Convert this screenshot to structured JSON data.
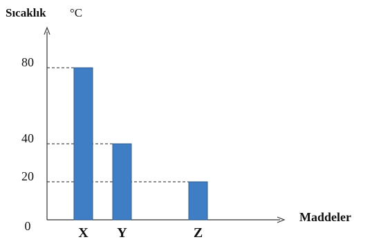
{
  "chart_data": {
    "type": "bar",
    "ylabel": "Sıcaklık",
    "yunit": "°C",
    "xlabel": "Maddeler",
    "categories": [
      "X",
      "Y",
      "Z"
    ],
    "values": [
      80,
      40,
      20
    ],
    "yticks": [
      0,
      20,
      40,
      80
    ],
    "ylim": [
      0,
      100
    ],
    "grid": false,
    "bar_color": "#3f7ec4"
  }
}
